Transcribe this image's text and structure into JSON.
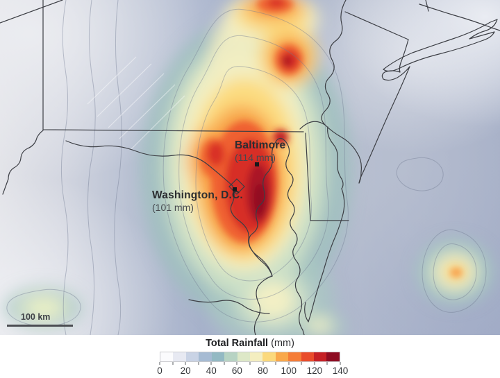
{
  "map": {
    "labels": [
      {
        "name": "Baltimore",
        "value": "(114 mm)"
      },
      {
        "name": "Washington, D.C.",
        "value": "(101 mm)"
      }
    ],
    "scale_bar": {
      "label": "100 km"
    }
  },
  "legend": {
    "title": "Total Rainfall",
    "units": "(mm)",
    "min": 0,
    "max": 140,
    "minor_tick_step": 10,
    "tick_labels": [
      "0",
      "20",
      "40",
      "60",
      "80",
      "100",
      "120",
      "140"
    ],
    "segment_colors": [
      "#fbfbfd",
      "#e7e9f2",
      "#c9d3e5",
      "#a6bbd3",
      "#93b9c3",
      "#b7d3c3",
      "#dde8c7",
      "#f4eec0",
      "#fbd97c",
      "#f9a84b",
      "#f57d38",
      "#e94c2b",
      "#c52025",
      "#8e0c22"
    ]
  },
  "chart_data": {
    "type": "heatmap",
    "title": "Total Rainfall (mm)",
    "colorbar": {
      "min": 0,
      "max": 140,
      "label_step": 20,
      "minor_tick_step": 10,
      "colors": [
        "#fbfbfd",
        "#e7e9f2",
        "#c9d3e5",
        "#a6bbd3",
        "#93b9c3",
        "#b7d3c3",
        "#dde8c7",
        "#f4eec0",
        "#fbd97c",
        "#f9a84b",
        "#f57d38",
        "#e94c2b",
        "#c52025",
        "#8e0c22"
      ]
    },
    "annotated_points": [
      {
        "name": "Baltimore",
        "rainfall_mm": 114
      },
      {
        "name": "Washington, D.C.",
        "rainfall_mm": 101
      }
    ],
    "scale_bar_km": 100
  }
}
